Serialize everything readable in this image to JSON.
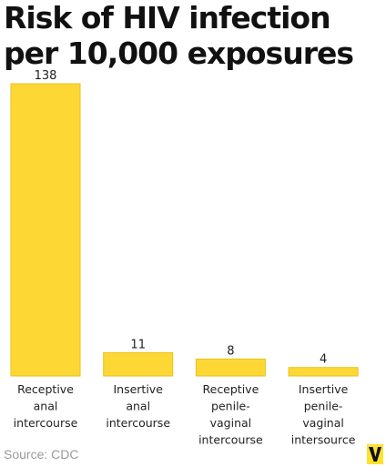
{
  "chart_data": {
    "type": "bar",
    "title": "Risk of HIV infection per 10,000 exposures",
    "categories": [
      [
        "Receptive",
        "anal",
        "intercourse"
      ],
      [
        "Insertive",
        "anal",
        "intercourse"
      ],
      [
        "Receptive",
        "penile-",
        "vaginal",
        "intercourse"
      ],
      [
        "Insertive",
        "penile-",
        "vaginal",
        "intersource"
      ]
    ],
    "values": [
      138,
      11,
      8,
      4
    ],
    "value_labels": [
      "138",
      "11",
      "8",
      "4"
    ],
    "xlabel": "",
    "ylabel": "",
    "ylim": [
      0,
      138
    ],
    "grid": false,
    "legend": "none"
  },
  "source": "Source: CDC",
  "colors": {
    "bar_fill": "#fdd835",
    "bar_stroke": "#e8c21a",
    "title": "#111111",
    "text": "#222222",
    "source": "#9a9a9a",
    "logo_bg": "#fde12d",
    "logo_letter": "#111111"
  }
}
